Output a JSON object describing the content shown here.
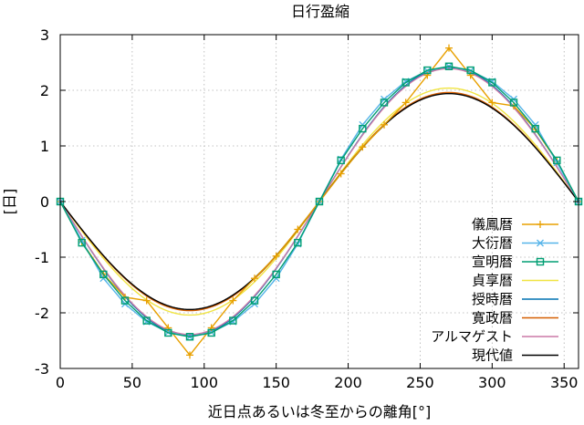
{
  "chart_data": {
    "type": "line",
    "title": "日行盈縮",
    "xlabel": "近日点あるいは冬至からの離角[°]",
    "ylabel": "[日]",
    "xlim": [
      0,
      360
    ],
    "ylim": [
      -3,
      3
    ],
    "xticks": [
      0,
      50,
      100,
      150,
      200,
      250,
      300,
      350
    ],
    "yticks": [
      -3,
      -2,
      -1,
      0,
      1,
      2,
      3
    ],
    "xtick_labels": [
      "0",
      "50",
      "100",
      "150",
      "200",
      "250",
      "300",
      "350"
    ],
    "ytick_labels": [
      "-3",
      "-2",
      "-1",
      "0",
      "1",
      "2",
      "3"
    ],
    "grid": true,
    "legend_position": "lower-right",
    "series": [
      {
        "name": "儀鳳暦",
        "color": "#e8a000",
        "marker": "plus",
        "x": [
          0,
          15,
          30,
          45,
          60,
          75,
          90,
          105,
          120,
          135,
          150,
          165,
          180,
          195,
          210,
          225,
          240,
          255,
          270,
          285,
          300,
          315,
          330,
          345,
          360
        ],
        "y": [
          0,
          -0.72,
          -1.3,
          -1.72,
          -1.78,
          -2.27,
          -2.76,
          -2.27,
          -1.78,
          -1.38,
          -0.98,
          -0.5,
          0,
          0.5,
          0.98,
          1.38,
          1.78,
          2.27,
          2.76,
          2.27,
          1.78,
          1.72,
          1.3,
          0.72,
          0
        ]
      },
      {
        "name": "大衍暦",
        "color": "#56b4e9",
        "marker": "x",
        "x": [
          0,
          15,
          30,
          45,
          60,
          75,
          90,
          105,
          120,
          135,
          150,
          165,
          180,
          195,
          210,
          225,
          240,
          255,
          270,
          285,
          300,
          315,
          330,
          345,
          360
        ],
        "y": [
          0,
          -0.7,
          -1.38,
          -1.84,
          -2.16,
          -2.35,
          -2.43,
          -2.35,
          -2.16,
          -1.84,
          -1.38,
          -0.76,
          0,
          0.76,
          1.38,
          1.84,
          2.16,
          2.35,
          2.43,
          2.35,
          2.16,
          1.84,
          1.38,
          0.7,
          0
        ]
      },
      {
        "name": "宣明暦",
        "color": "#009e73",
        "marker": "square",
        "x": [
          0,
          15,
          30,
          45,
          60,
          75,
          90,
          105,
          120,
          135,
          150,
          165,
          180,
          195,
          210,
          225,
          240,
          255,
          270,
          285,
          300,
          315,
          330,
          345,
          360
        ],
        "y": [
          0,
          -0.74,
          -1.31,
          -1.78,
          -2.14,
          -2.36,
          -2.43,
          -2.36,
          -2.14,
          -1.78,
          -1.31,
          -0.74,
          0,
          0.74,
          1.31,
          1.78,
          2.14,
          2.36,
          2.43,
          2.36,
          2.14,
          1.78,
          1.31,
          0.74,
          0
        ]
      },
      {
        "name": "貞享暦",
        "color": "#f0e442",
        "marker": "none",
        "amplitude": 2.04
      },
      {
        "name": "授時暦",
        "color": "#0072b2",
        "marker": "none",
        "amplitude": 2.41
      },
      {
        "name": "寛政暦",
        "color": "#d55e00",
        "marker": "none",
        "amplitude": 1.96
      },
      {
        "name": "アルマゲスト",
        "color": "#cc79a7",
        "marker": "none",
        "amplitude": 2.39
      },
      {
        "name": "現代値",
        "color": "#000000",
        "marker": "none",
        "amplitude": 1.94
      }
    ]
  }
}
